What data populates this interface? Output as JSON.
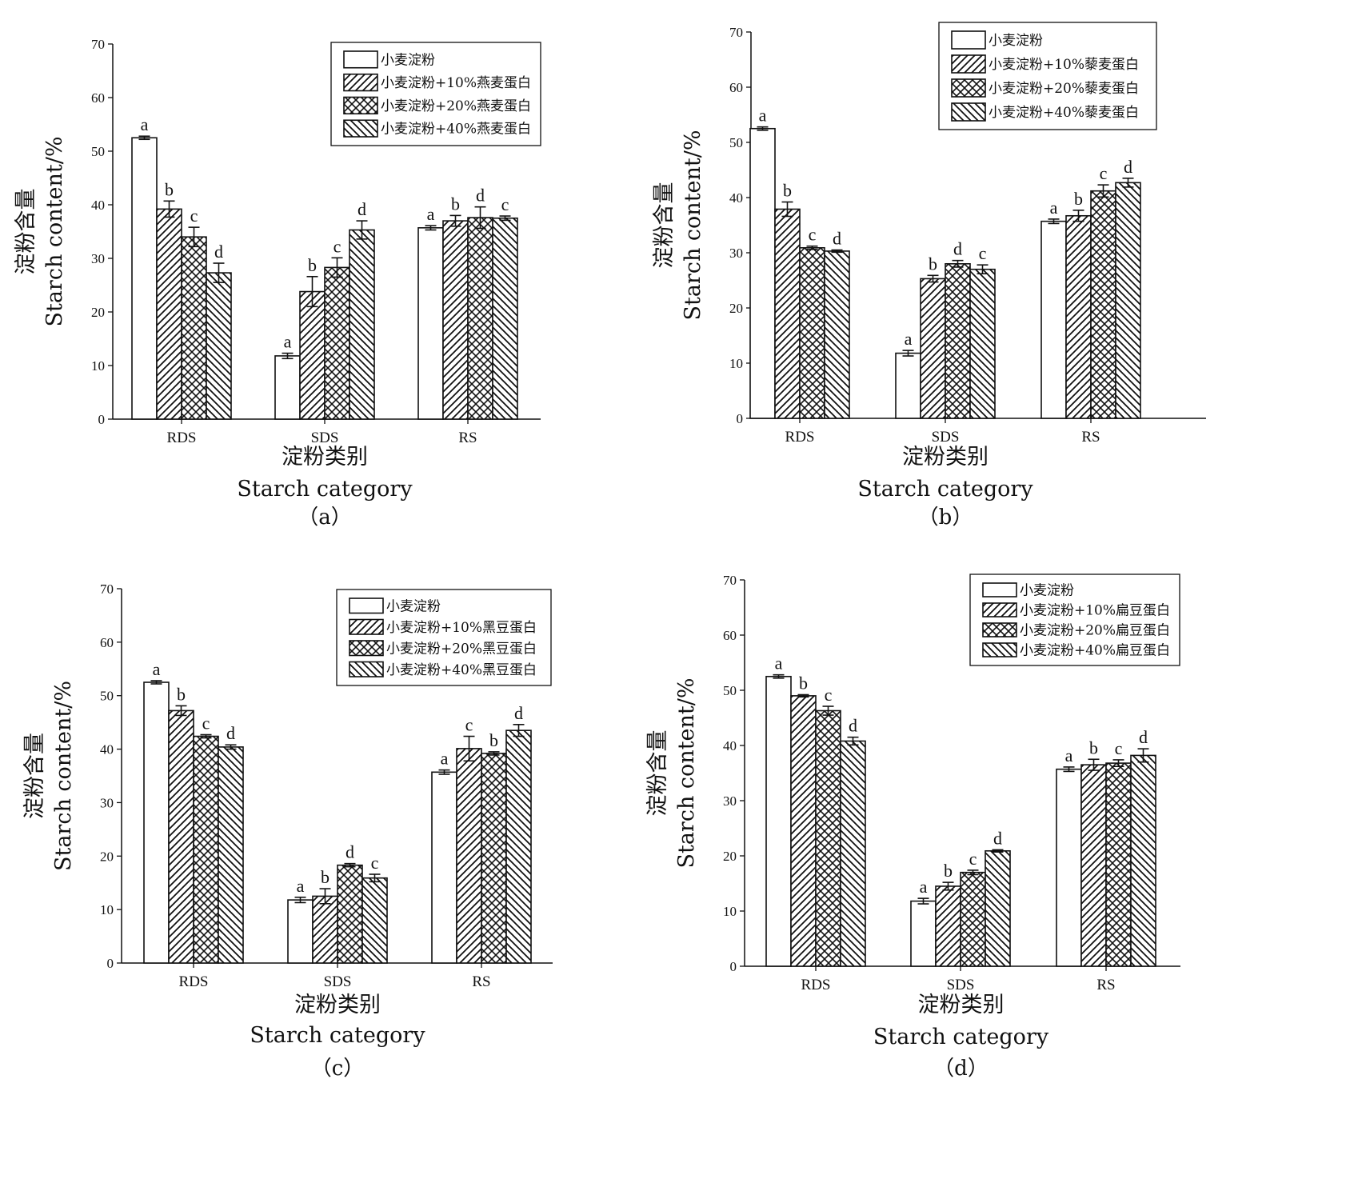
{
  "chart_data": [
    {
      "type": "bar",
      "panel_label": "（a）",
      "categories": [
        "RDS",
        "SDS",
        "RS"
      ],
      "ylabel_cn": "淀粉含量",
      "ylabel_en": "Starch content/%",
      "xlabel_cn": "淀粉类别",
      "xlabel_en": "Starch category",
      "ylim": [
        0,
        70
      ],
      "yticks": [
        0,
        10,
        20,
        30,
        40,
        50,
        60,
        70
      ],
      "legend_position": "top-right",
      "series": [
        {
          "name": "小麦淀粉",
          "pattern": "none",
          "values": [
            52.5,
            11.8,
            35.7
          ],
          "errors": [
            0.3,
            0.5,
            0.4
          ],
          "letters": [
            "a",
            "a",
            "a"
          ]
        },
        {
          "name": "小麦淀粉+10%燕麦蛋白",
          "pattern": "diag-right",
          "values": [
            39.2,
            23.8,
            37.0
          ],
          "errors": [
            1.5,
            2.8,
            1.0
          ],
          "letters": [
            "b",
            "b",
            "b"
          ]
        },
        {
          "name": "小麦淀粉+20%燕麦蛋白",
          "pattern": "cross",
          "values": [
            34.0,
            28.3,
            37.6
          ],
          "errors": [
            1.8,
            1.8,
            2.0
          ],
          "letters": [
            "c",
            "c",
            "d"
          ]
        },
        {
          "name": "小麦淀粉+40%燕麦蛋白",
          "pattern": "diag-left",
          "values": [
            27.3,
            35.3,
            37.5
          ],
          "errors": [
            1.8,
            1.7,
            0.4
          ],
          "letters": [
            "d",
            "d",
            "c"
          ]
        }
      ]
    },
    {
      "type": "bar",
      "panel_label": "（b）",
      "categories": [
        "RDS",
        "SDS",
        "RS"
      ],
      "ylabel_cn": "淀粉含量",
      "ylabel_en": "Starch content/%",
      "xlabel_cn": "淀粉类别",
      "xlabel_en": "Starch category",
      "ylim": [
        0,
        70
      ],
      "yticks": [
        0,
        10,
        20,
        30,
        40,
        50,
        60,
        70
      ],
      "legend_position": "top-right",
      "series": [
        {
          "name": "小麦淀粉",
          "pattern": "none",
          "values": [
            52.5,
            11.8,
            35.7
          ],
          "errors": [
            0.3,
            0.5,
            0.4
          ],
          "letters": [
            "a",
            "a",
            "a"
          ]
        },
        {
          "name": "小麦淀粉+10%藜麦蛋白",
          "pattern": "diag-right",
          "values": [
            37.9,
            25.3,
            36.7
          ],
          "errors": [
            1.3,
            0.6,
            1.0
          ],
          "letters": [
            "b",
            "b",
            "b"
          ]
        },
        {
          "name": "小麦淀粉+20%藜麦蛋白",
          "pattern": "cross",
          "values": [
            30.9,
            28.0,
            41.2
          ],
          "errors": [
            0.3,
            0.6,
            1.1
          ],
          "letters": [
            "c",
            "d",
            "c"
          ]
        },
        {
          "name": "小麦淀粉+40%藜麦蛋白",
          "pattern": "diag-left",
          "values": [
            30.3,
            27.0,
            42.7
          ],
          "errors": [
            0.2,
            0.8,
            0.8
          ],
          "letters": [
            "d",
            "c",
            "d"
          ]
        }
      ]
    },
    {
      "type": "bar",
      "panel_label": "（c）",
      "categories": [
        "RDS",
        "SDS",
        "RS"
      ],
      "ylabel_cn": "淀粉含量",
      "ylabel_en": "Starch content/%",
      "xlabel_cn": "淀粉类别",
      "xlabel_en": "Starch category",
      "ylim": [
        0,
        70
      ],
      "yticks": [
        0,
        10,
        20,
        30,
        40,
        50,
        60,
        70
      ],
      "legend_position": "top-right",
      "series": [
        {
          "name": "小麦淀粉",
          "pattern": "none",
          "values": [
            52.5,
            11.8,
            35.7
          ],
          "errors": [
            0.3,
            0.5,
            0.4
          ],
          "letters": [
            "a",
            "a",
            "a"
          ]
        },
        {
          "name": "小麦淀粉+10%黑豆蛋白",
          "pattern": "diag-right",
          "values": [
            47.2,
            12.5,
            40.1
          ],
          "errors": [
            0.9,
            1.4,
            2.3
          ],
          "letters": [
            "b",
            "b",
            "c"
          ]
        },
        {
          "name": "小麦淀粉+20%黑豆蛋白",
          "pattern": "cross",
          "values": [
            42.4,
            18.3,
            39.2
          ],
          "errors": [
            0.3,
            0.3,
            0.3
          ],
          "letters": [
            "c",
            "d",
            "b"
          ]
        },
        {
          "name": "小麦淀粉+40%黑豆蛋白",
          "pattern": "diag-left",
          "values": [
            40.4,
            15.9,
            43.5
          ],
          "errors": [
            0.4,
            0.7,
            1.1
          ],
          "letters": [
            "d",
            "c",
            "d"
          ]
        }
      ]
    },
    {
      "type": "bar",
      "panel_label": "（d）",
      "categories": [
        "RDS",
        "SDS",
        "RS"
      ],
      "ylabel_cn": "淀粉含量",
      "ylabel_en": "Starch content/%",
      "xlabel_cn": "淀粉类别",
      "xlabel_en": "Starch category",
      "ylim": [
        0,
        70
      ],
      "yticks": [
        0,
        10,
        20,
        30,
        40,
        50,
        60,
        70
      ],
      "legend_position": "top-right",
      "series": [
        {
          "name": "小麦淀粉",
          "pattern": "none",
          "values": [
            52.5,
            11.8,
            35.7
          ],
          "errors": [
            0.3,
            0.5,
            0.4
          ],
          "letters": [
            "a",
            "a",
            "a"
          ]
        },
        {
          "name": "小麦淀粉+10%扁豆蛋白",
          "pattern": "diag-right",
          "values": [
            49.0,
            14.5,
            36.5
          ],
          "errors": [
            0.2,
            0.7,
            1.0
          ],
          "letters": [
            "b",
            "b",
            "b"
          ]
        },
        {
          "name": "小麦淀粉+20%扁豆蛋白",
          "pattern": "cross",
          "values": [
            46.3,
            17.0,
            36.8
          ],
          "errors": [
            0.8,
            0.4,
            0.6
          ],
          "letters": [
            "c",
            "c",
            "c"
          ]
        },
        {
          "name": "小麦淀粉+40%扁豆蛋白",
          "pattern": "diag-left",
          "values": [
            40.8,
            20.9,
            38.2
          ],
          "errors": [
            0.7,
            0.2,
            1.2
          ],
          "letters": [
            "d",
            "d",
            "d"
          ]
        }
      ]
    }
  ]
}
